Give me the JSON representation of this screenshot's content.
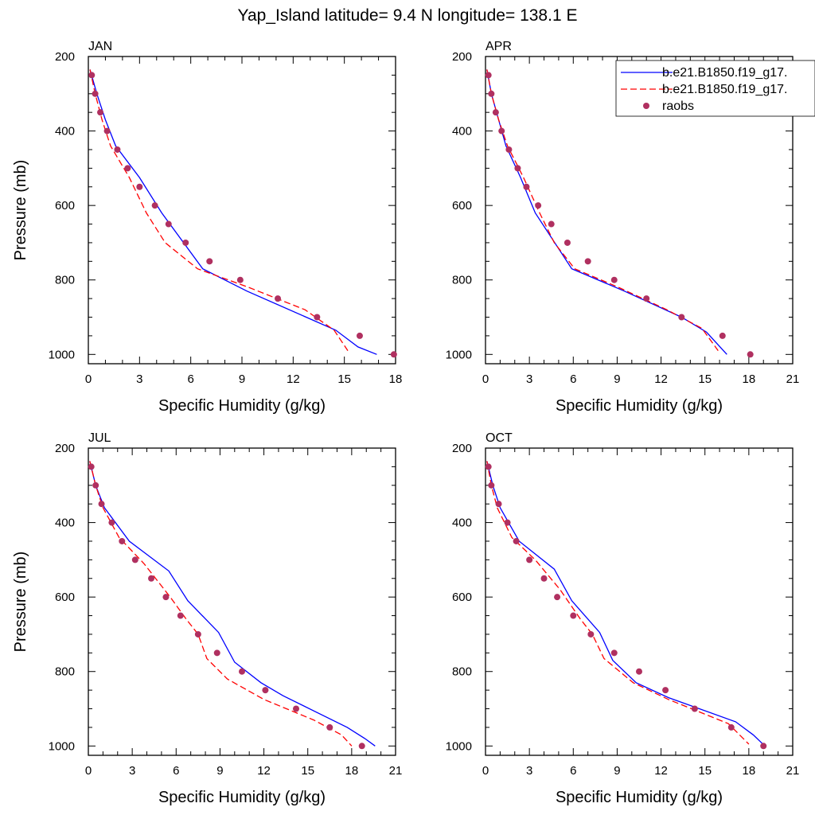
{
  "title": "Yap_Island  latitude= 9.4 N longitude= 138.1 E",
  "chart_data": [
    {
      "type": "line",
      "panel": "JAN",
      "xlabel": "Specific Humidity (g/kg)",
      "ylabel": "Pressure (mb)",
      "xlim": [
        0,
        18
      ],
      "xticks": [
        0,
        3,
        6,
        9,
        12,
        15,
        18
      ],
      "ylim": [
        1025,
        200
      ],
      "yticks": [
        200,
        400,
        600,
        800,
        1000
      ],
      "series": [
        {
          "name": "b.e21.B1850.f19_g17.",
          "color": "#0000ff",
          "style": "solid",
          "points": [
            [
              0.1,
              235
            ],
            [
              0.5,
              300
            ],
            [
              1.0,
              370
            ],
            [
              1.6,
              440
            ],
            [
              3.0,
              525
            ],
            [
              4.3,
              620
            ],
            [
              6.7,
              770
            ],
            [
              9.3,
              830
            ],
            [
              14.5,
              935
            ],
            [
              15.8,
              980
            ],
            [
              16.9,
              1000
            ]
          ]
        },
        {
          "name": "b.e21.B1850.f19_g17.",
          "color": "#ff0000",
          "style": "dashed",
          "points": [
            [
              0.1,
              235
            ],
            [
              0.4,
              300
            ],
            [
              0.8,
              370
            ],
            [
              1.3,
              440
            ],
            [
              2.4,
              525
            ],
            [
              3.4,
              620
            ],
            [
              4.5,
              700
            ],
            [
              6.4,
              770
            ],
            [
              9.4,
              820
            ],
            [
              12.7,
              880
            ],
            [
              14.4,
              935
            ],
            [
              15.2,
              990
            ]
          ]
        },
        {
          "name": "raobs",
          "color": "#b03060",
          "style": "markers",
          "points": [
            [
              0.2,
              250
            ],
            [
              0.4,
              300
            ],
            [
              0.7,
              350
            ],
            [
              1.1,
              400
            ],
            [
              1.7,
              450
            ],
            [
              2.3,
              500
            ],
            [
              3.0,
              550
            ],
            [
              3.9,
              600
            ],
            [
              4.7,
              650
            ],
            [
              5.7,
              700
            ],
            [
              7.1,
              750
            ],
            [
              8.9,
              800
            ],
            [
              11.1,
              850
            ],
            [
              13.4,
              900
            ],
            [
              15.9,
              950
            ],
            [
              17.9,
              1000
            ]
          ]
        }
      ]
    },
    {
      "type": "line",
      "panel": "APR",
      "xlabel": "Specific Humidity (g/kg)",
      "ylabel": "",
      "xlim": [
        0,
        21
      ],
      "xticks": [
        0,
        3,
        6,
        9,
        12,
        15,
        18,
        21
      ],
      "ylim": [
        1025,
        200
      ],
      "yticks": [
        200,
        400,
        600,
        800,
        1000
      ],
      "series": [
        {
          "name": "b.e21.B1850.f19_g17.",
          "color": "#0000ff",
          "style": "solid",
          "points": [
            [
              0.1,
              235
            ],
            [
              0.4,
              300
            ],
            [
              0.9,
              370
            ],
            [
              1.4,
              440
            ],
            [
              2.4,
              525
            ],
            [
              3.4,
              620
            ],
            [
              5.9,
              770
            ],
            [
              9.5,
              830
            ],
            [
              13.4,
              900
            ],
            [
              15.1,
              940
            ],
            [
              16.5,
              1000
            ]
          ]
        },
        {
          "name": "b.e21.B1850.f19_g17.",
          "color": "#ff0000",
          "style": "dashed",
          "points": [
            [
              0.1,
              235
            ],
            [
              0.4,
              300
            ],
            [
              0.9,
              370
            ],
            [
              1.5,
              440
            ],
            [
              2.6,
              525
            ],
            [
              3.7,
              620
            ],
            [
              4.7,
              700
            ],
            [
              6.1,
              770
            ],
            [
              9.1,
              820
            ],
            [
              12.4,
              880
            ],
            [
              14.8,
              930
            ],
            [
              15.9,
              990
            ]
          ]
        },
        {
          "name": "raobs",
          "color": "#b03060",
          "style": "markers",
          "points": [
            [
              0.2,
              250
            ],
            [
              0.4,
              300
            ],
            [
              0.7,
              350
            ],
            [
              1.1,
              400
            ],
            [
              1.6,
              450
            ],
            [
              2.2,
              500
            ],
            [
              2.8,
              550
            ],
            [
              3.6,
              600
            ],
            [
              4.5,
              650
            ],
            [
              5.6,
              700
            ],
            [
              7.0,
              750
            ],
            [
              8.8,
              800
            ],
            [
              11.0,
              850
            ],
            [
              13.4,
              900
            ],
            [
              16.2,
              950
            ],
            [
              18.1,
              1000
            ]
          ]
        }
      ]
    },
    {
      "type": "line",
      "panel": "JUL",
      "xlabel": "Specific Humidity (g/kg)",
      "ylabel": "Pressure (mb)",
      "xlim": [
        0,
        21
      ],
      "xticks": [
        0,
        3,
        6,
        9,
        12,
        15,
        18,
        21
      ],
      "ylim": [
        1025,
        200
      ],
      "yticks": [
        200,
        400,
        600,
        800,
        1000
      ],
      "series": [
        {
          "name": "b.e21.B1850.f19_g17.",
          "color": "#0000ff",
          "style": "solid",
          "points": [
            [
              0.1,
              235
            ],
            [
              0.5,
              300
            ],
            [
              1.1,
              360
            ],
            [
              2.8,
              450
            ],
            [
              5.5,
              530
            ],
            [
              6.8,
              610
            ],
            [
              8.9,
              695
            ],
            [
              10.0,
              775
            ],
            [
              11.8,
              830
            ],
            [
              13.3,
              865
            ],
            [
              17.7,
              950
            ],
            [
              18.9,
              980
            ],
            [
              19.6,
              1000
            ]
          ]
        },
        {
          "name": "b.e21.B1850.f19_g17.",
          "color": "#ff0000",
          "style": "dashed",
          "points": [
            [
              0.1,
              235
            ],
            [
              0.5,
              300
            ],
            [
              1.0,
              360
            ],
            [
              2.1,
              440
            ],
            [
              3.8,
              510
            ],
            [
              5.6,
              600
            ],
            [
              6.7,
              660
            ],
            [
              7.5,
              700
            ],
            [
              8.1,
              765
            ],
            [
              9.5,
              820
            ],
            [
              12.0,
              875
            ],
            [
              15.4,
              930
            ],
            [
              17.3,
              970
            ],
            [
              18.0,
              1000
            ]
          ]
        },
        {
          "name": "raobs",
          "color": "#b03060",
          "style": "markers",
          "points": [
            [
              0.2,
              250
            ],
            [
              0.5,
              300
            ],
            [
              0.9,
              350
            ],
            [
              1.6,
              400
            ],
            [
              2.3,
              450
            ],
            [
              3.2,
              500
            ],
            [
              4.3,
              550
            ],
            [
              5.3,
              600
            ],
            [
              6.3,
              650
            ],
            [
              7.5,
              700
            ],
            [
              8.8,
              750
            ],
            [
              10.5,
              800
            ],
            [
              12.1,
              850
            ],
            [
              14.2,
              900
            ],
            [
              16.5,
              950
            ],
            [
              18.7,
              1000
            ]
          ]
        }
      ]
    },
    {
      "type": "line",
      "panel": "OCT",
      "xlabel": "Specific Humidity (g/kg)",
      "ylabel": "",
      "xlim": [
        0,
        21
      ],
      "xticks": [
        0,
        3,
        6,
        9,
        12,
        15,
        18,
        21
      ],
      "ylim": [
        1025,
        200
      ],
      "yticks": [
        200,
        400,
        600,
        800,
        1000
      ],
      "series": [
        {
          "name": "b.e21.B1850.f19_g17.",
          "color": "#0000ff",
          "style": "solid",
          "points": [
            [
              0.1,
              235
            ],
            [
              0.5,
              300
            ],
            [
              1.0,
              360
            ],
            [
              2.3,
              450
            ],
            [
              4.7,
              525
            ],
            [
              5.9,
              610
            ],
            [
              7.8,
              695
            ],
            [
              8.7,
              770
            ],
            [
              10.3,
              830
            ],
            [
              12.5,
              870
            ],
            [
              17.1,
              935
            ],
            [
              18.3,
              970
            ],
            [
              19.1,
              1000
            ]
          ]
        },
        {
          "name": "b.e21.B1850.f19_g17.",
          "color": "#ff0000",
          "style": "dashed",
          "points": [
            [
              0.1,
              235
            ],
            [
              0.4,
              300
            ],
            [
              0.8,
              360
            ],
            [
              1.8,
              440
            ],
            [
              3.4,
              500
            ],
            [
              5.1,
              580
            ],
            [
              6.5,
              660
            ],
            [
              7.3,
              700
            ],
            [
              8.1,
              765
            ],
            [
              10.1,
              830
            ],
            [
              12.5,
              875
            ],
            [
              16.6,
              940
            ],
            [
              18.0,
              995
            ]
          ]
        },
        {
          "name": "raobs",
          "color": "#b03060",
          "style": "markers",
          "points": [
            [
              0.2,
              250
            ],
            [
              0.4,
              300
            ],
            [
              0.9,
              350
            ],
            [
              1.5,
              400
            ],
            [
              2.1,
              450
            ],
            [
              3.0,
              500
            ],
            [
              4.0,
              550
            ],
            [
              4.9,
              600
            ],
            [
              6.0,
              650
            ],
            [
              7.2,
              700
            ],
            [
              8.8,
              750
            ],
            [
              10.5,
              800
            ],
            [
              12.3,
              850
            ],
            [
              14.3,
              900
            ],
            [
              16.8,
              950
            ],
            [
              19.0,
              1000
            ]
          ]
        }
      ]
    }
  ],
  "legend": {
    "placement": "top-right",
    "items": [
      {
        "label": "b.e21.B1850.f19_g17.",
        "style": "solid",
        "color": "#0000ff"
      },
      {
        "label": "b.e21.B1850.f19_g17.",
        "style": "dashed",
        "color": "#ff0000"
      },
      {
        "label": "raobs",
        "style": "markers",
        "color": "#b03060"
      }
    ]
  }
}
